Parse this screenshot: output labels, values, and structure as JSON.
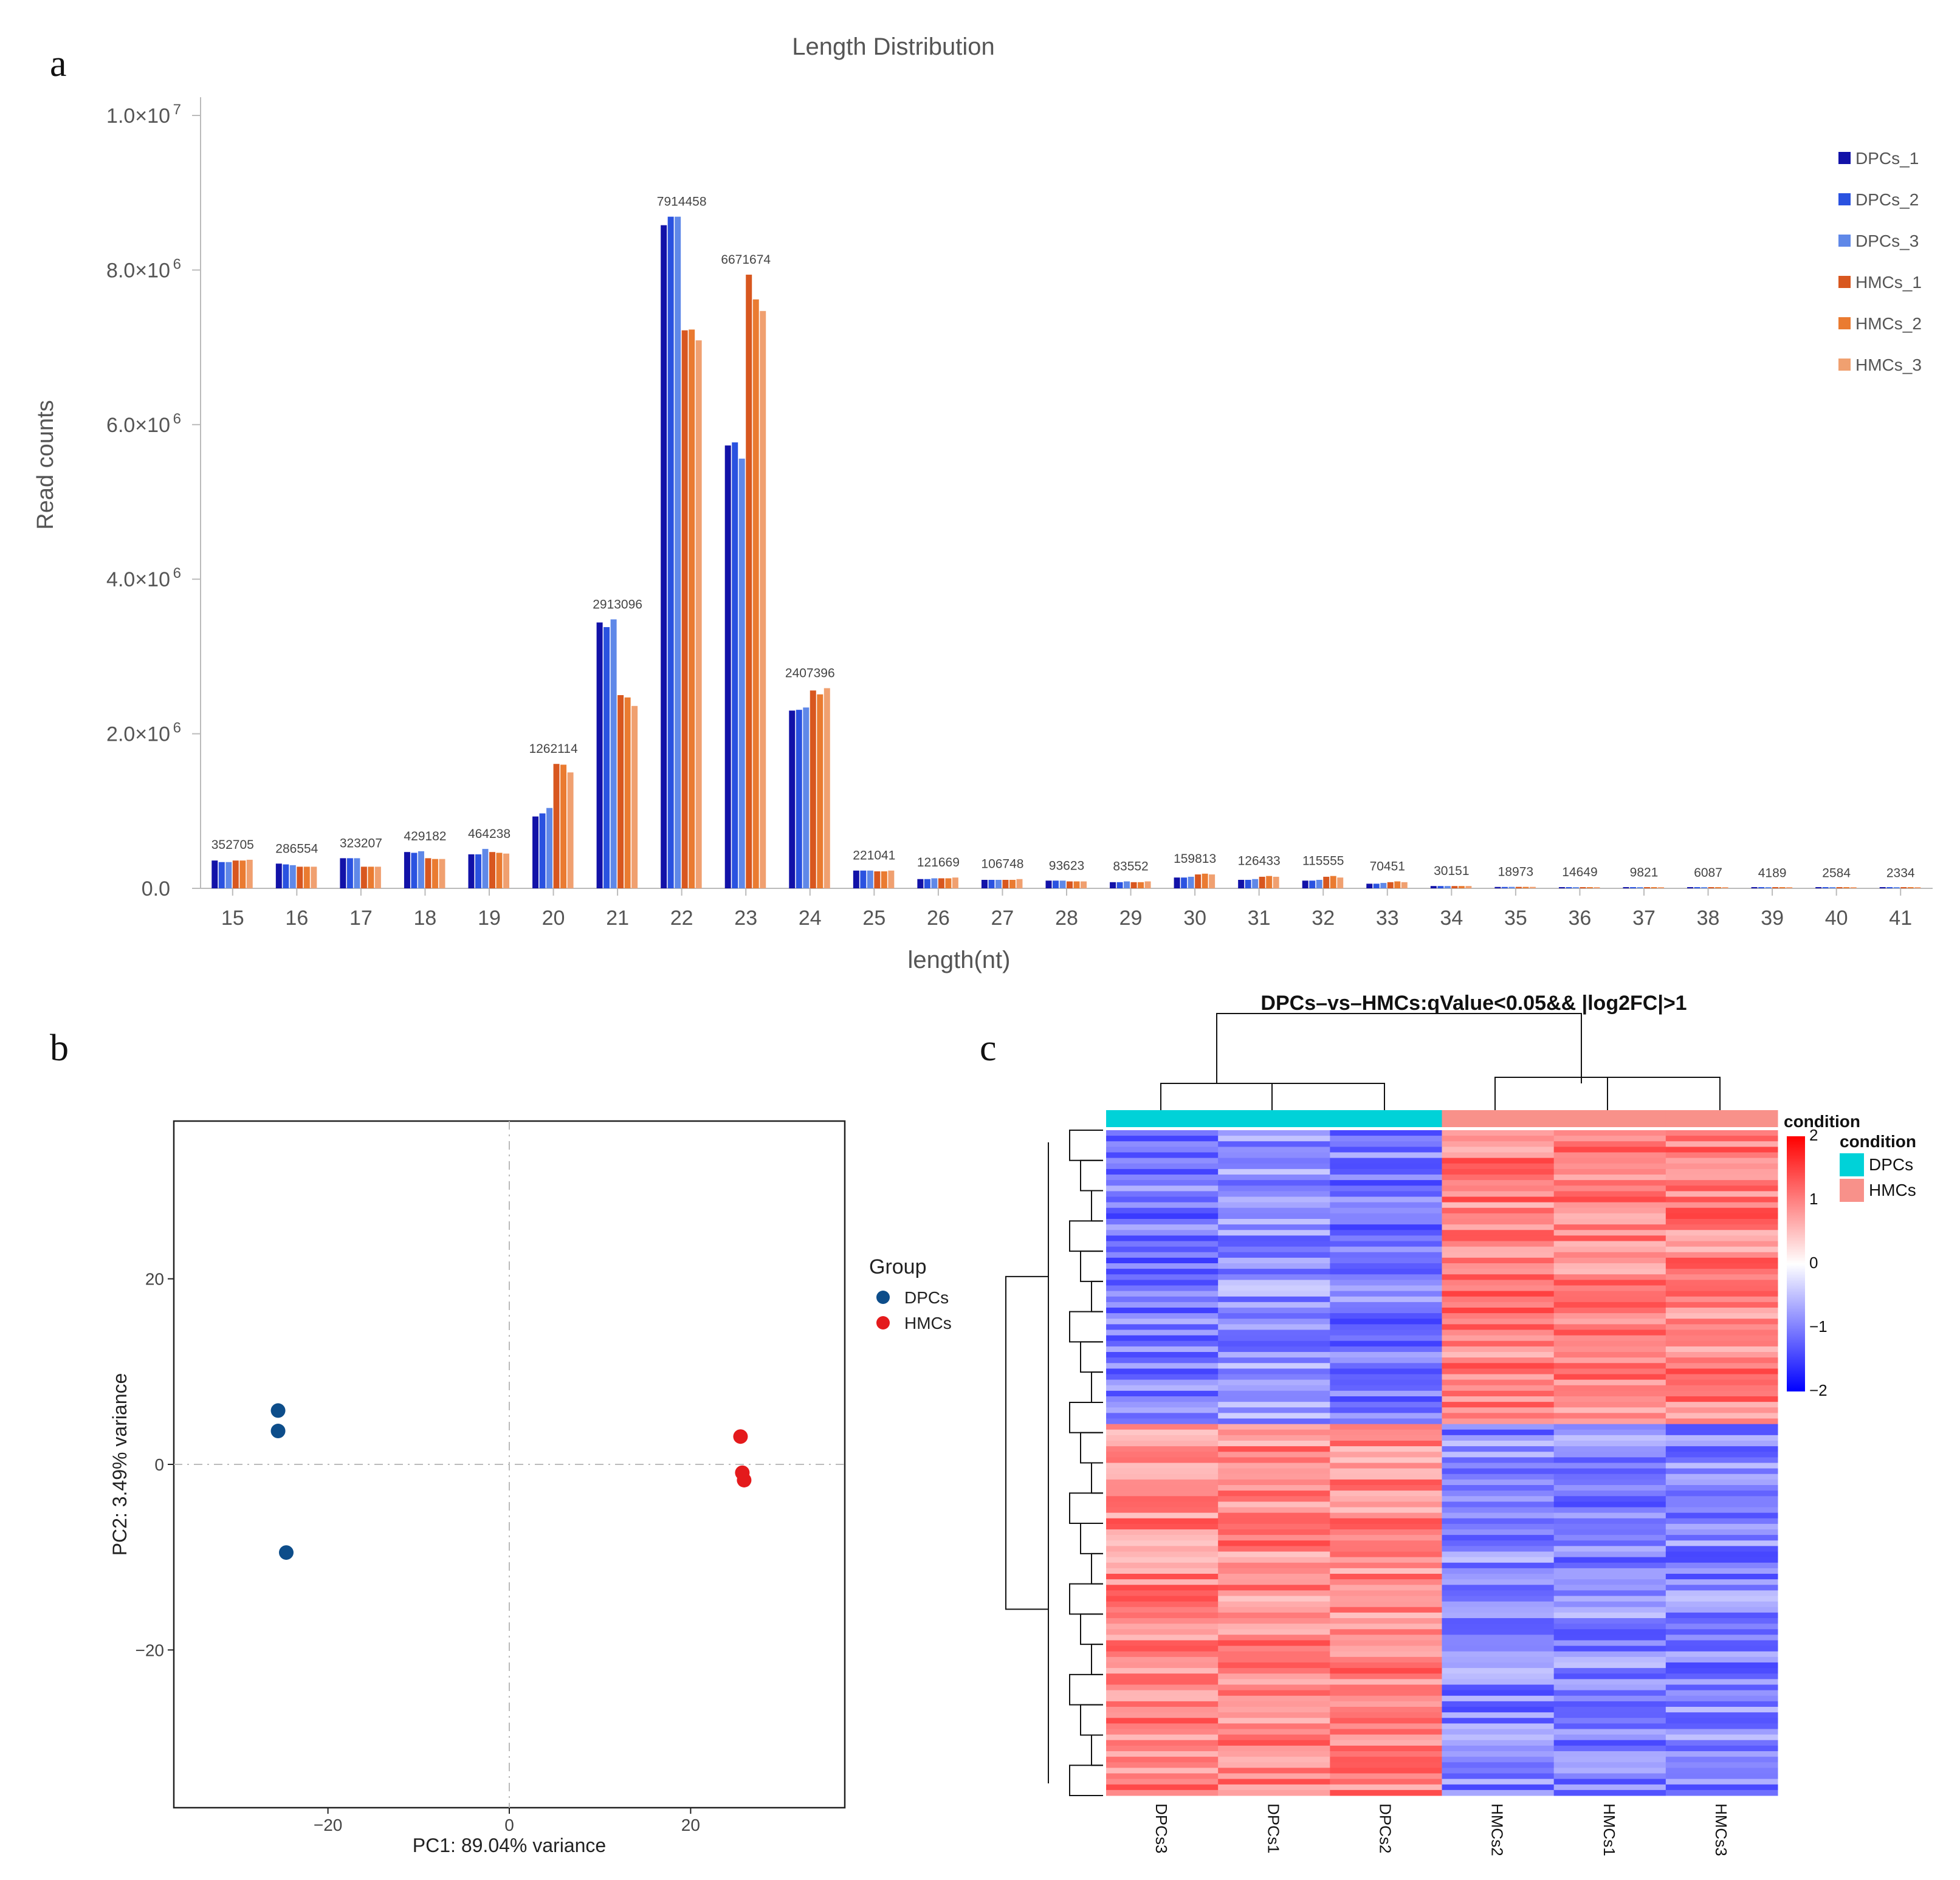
{
  "panels": {
    "a": "a",
    "b": "b",
    "c": "c"
  },
  "chart_data": [
    {
      "type": "bar",
      "title": "Length Distribution",
      "xlabel": "length(nt)",
      "ylabel": "Read counts",
      "ylim": [
        0,
        10000000
      ],
      "y_ticks": [
        {
          "value": 0,
          "label": "0.0",
          "exp": ""
        },
        {
          "value": 2000000,
          "label": "2.0×10",
          "exp": "6"
        },
        {
          "value": 4000000,
          "label": "4.0×10",
          "exp": "6"
        },
        {
          "value": 6000000,
          "label": "6.0×10",
          "exp": "6"
        },
        {
          "value": 8000000,
          "label": "8.0×10",
          "exp": "6"
        },
        {
          "value": 10000000,
          "label": "1.0×10",
          "exp": "7"
        }
      ],
      "categories": [
        "15",
        "16",
        "17",
        "18",
        "19",
        "20",
        "21",
        "22",
        "23",
        "24",
        "25",
        "26",
        "27",
        "28",
        "29",
        "30",
        "31",
        "32",
        "33",
        "34",
        "35",
        "36",
        "37",
        "38",
        "39",
        "40",
        "41"
      ],
      "bar_labels": [
        "352705",
        "286554",
        "323207",
        "429182",
        "464238",
        "1262114",
        "2913096",
        "7914458",
        "6671674",
        "2407396",
        "221041",
        "121669",
        "106748",
        "93623",
        "83552",
        "159813",
        "126433",
        "115555",
        "70451",
        "30151",
        "18973",
        "14649",
        "9821",
        "6087",
        "4189",
        "2584",
        "2334"
      ],
      "series": [
        {
          "name": "DPCs_1",
          "color": "#1212a8",
          "values": [
            360000,
            320000,
            390000,
            470000,
            440000,
            930000,
            3440000,
            8580000,
            5730000,
            2300000,
            230000,
            120000,
            110000,
            100000,
            80000,
            140000,
            110000,
            100000,
            60000,
            30000,
            18000,
            14000,
            10000,
            6000,
            4000,
            2500,
            2300
          ]
        },
        {
          "name": "DPCs_2",
          "color": "#2a52e0",
          "values": [
            340000,
            310000,
            390000,
            460000,
            440000,
            970000,
            3380000,
            8690000,
            5770000,
            2310000,
            230000,
            120000,
            110000,
            100000,
            80000,
            140000,
            110000,
            100000,
            60000,
            30000,
            18000,
            14000,
            10000,
            6000,
            4000,
            2500,
            2300
          ]
        },
        {
          "name": "DPCs_3",
          "color": "#5f88e8",
          "values": [
            340000,
            300000,
            390000,
            480000,
            510000,
            1040000,
            3480000,
            8690000,
            5560000,
            2340000,
            230000,
            130000,
            110000,
            100000,
            90000,
            150000,
            120000,
            110000,
            70000,
            30000,
            19000,
            15000,
            10000,
            6000,
            4200,
            2600,
            2300
          ]
        },
        {
          "name": "HMCs_1",
          "color": "#d8571f",
          "values": [
            360000,
            280000,
            280000,
            390000,
            470000,
            1610000,
            2500000,
            7220000,
            7940000,
            2560000,
            220000,
            130000,
            110000,
            90000,
            80000,
            180000,
            150000,
            150000,
            80000,
            30000,
            19000,
            15000,
            10000,
            6000,
            4200,
            2600,
            2300
          ]
        },
        {
          "name": "HMCs_2",
          "color": "#ea7b31",
          "values": [
            360000,
            280000,
            280000,
            380000,
            460000,
            1600000,
            2470000,
            7230000,
            7620000,
            2510000,
            220000,
            130000,
            110000,
            90000,
            80000,
            190000,
            160000,
            160000,
            90000,
            30000,
            19000,
            15000,
            10000,
            6000,
            4200,
            2600,
            2300
          ]
        },
        {
          "name": "HMCs_3",
          "color": "#f0a070",
          "values": [
            370000,
            280000,
            280000,
            380000,
            450000,
            1500000,
            2360000,
            7090000,
            7470000,
            2590000,
            230000,
            140000,
            120000,
            90000,
            90000,
            180000,
            150000,
            140000,
            80000,
            30000,
            19000,
            15000,
            10000,
            6000,
            4200,
            2600,
            2300
          ]
        }
      ]
    },
    {
      "type": "scatter",
      "title": "",
      "xlabel": "PC1: 89.04% variance",
      "ylabel": "PC2: 3.49% variance",
      "xlim": [
        -37,
        37
      ],
      "ylim": [
        -37,
        37
      ],
      "x_ticks": [
        -20,
        0,
        20
      ],
      "y_ticks": [
        -20,
        0,
        20
      ],
      "x_tick_labels": [
        "−20",
        "0",
        "20"
      ],
      "y_tick_labels": [
        "−20",
        "0",
        "20"
      ],
      "legend_title": "Group",
      "series": [
        {
          "name": "DPCs",
          "color": "#0d4d8a",
          "points": [
            [
              -25.5,
              5.8
            ],
            [
              -25.5,
              3.6
            ],
            [
              -24.6,
              -9.5
            ]
          ]
        },
        {
          "name": "HMCs",
          "color": "#e41a1c",
          "points": [
            [
              25.5,
              3.0
            ],
            [
              25.7,
              -0.9
            ],
            [
              25.9,
              -1.7
            ]
          ]
        }
      ]
    },
    {
      "type": "heatmap",
      "title": "DPCs–vs–HMCs:qValue<0.05&& |log2FC|>1",
      "columns": [
        "DPCs3",
        "DPCs1",
        "DPCs2",
        "HMCs2",
        "HMCs1",
        "HMCs3"
      ],
      "column_conditions": [
        "DPCs",
        "DPCs",
        "DPCs",
        "HMCs",
        "HMCs",
        "HMCs"
      ],
      "condition_legend_title": "condition",
      "conditions": [
        {
          "name": "DPCs",
          "color": "#00d2d8"
        },
        {
          "name": "HMCs",
          "color": "#f8918a"
        }
      ],
      "colorbar_title": "condition",
      "colorbar_ticks": [
        "2",
        "1",
        "0",
        "−1",
        "−2"
      ],
      "colorbar_range": [
        -2,
        2
      ],
      "colors": {
        "high": "#ff0000",
        "mid": "#ffffff",
        "low": "#0000ff"
      },
      "row_blocks": [
        {
          "fraction": 0.44,
          "means": [
            -1.05,
            -0.85,
            -1.05,
            1.0,
            1.0,
            1.0
          ]
        },
        {
          "fraction": 0.56,
          "means": [
            0.95,
            0.95,
            0.95,
            -0.95,
            -0.95,
            -0.95
          ]
        }
      ]
    }
  ]
}
